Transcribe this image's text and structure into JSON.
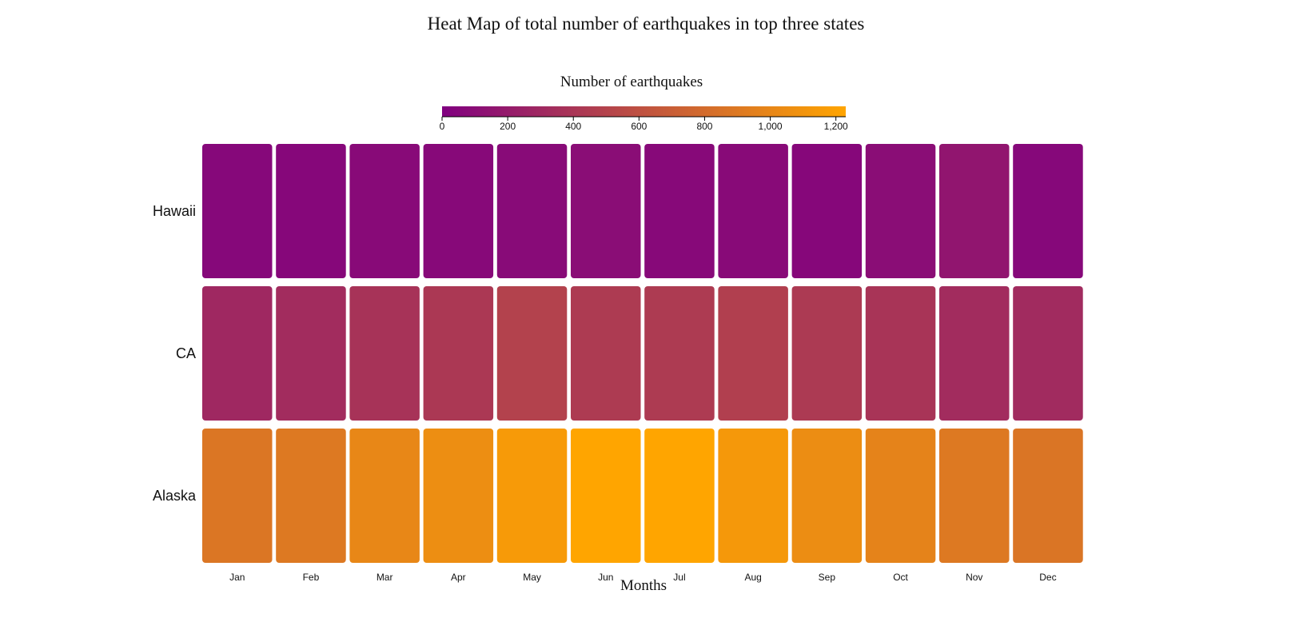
{
  "chart_data": {
    "type": "heatmap",
    "title": "Heat Map of total number of earthquakes in top three states",
    "xlabel": "Months",
    "legend": {
      "title": "Number of earthquakes",
      "placement": "top-center",
      "domain": [
        0,
        1230
      ],
      "ticks": [
        0,
        200,
        400,
        600,
        800,
        1000,
        1200
      ],
      "tick_labels": [
        "0",
        "200",
        "400",
        "600",
        "800",
        "1,000",
        "1,200"
      ],
      "color_low": "#800080",
      "color_high": "#ffa500"
    },
    "columns": [
      "Jan",
      "Feb",
      "Mar",
      "Apr",
      "May",
      "Jun",
      "Jul",
      "Aug",
      "Sep",
      "Oct",
      "Nov",
      "Dec"
    ],
    "rows": [
      "Hawaii",
      "CA",
      "Alaska"
    ],
    "values": [
      [
        60,
        55,
        75,
        70,
        80,
        95,
        70,
        75,
        55,
        95,
        160,
        60
      ],
      [
        300,
        330,
        380,
        420,
        490,
        440,
        440,
        470,
        430,
        390,
        330,
        320
      ],
      [
        880,
        900,
        1010,
        1060,
        1150,
        1230,
        1230,
        1130,
        1050,
        980,
        900,
        870
      ]
    ]
  }
}
